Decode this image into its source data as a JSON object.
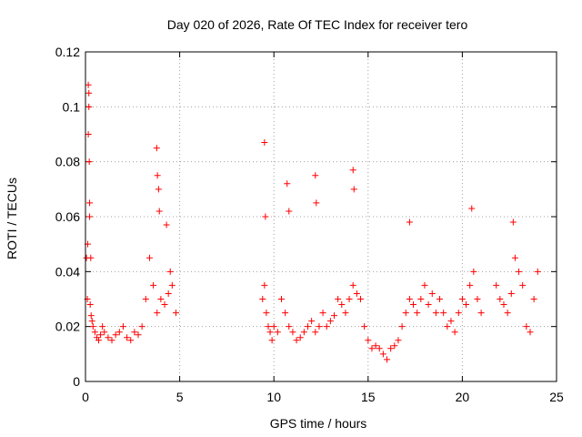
{
  "chart_data": {
    "type": "scatter",
    "title": "Day 020 of 2026, Rate Of TEC Index for receiver tero",
    "xlabel": "GPS time / hours",
    "ylabel": "ROTI / TECUs",
    "xlim": [
      0,
      25
    ],
    "ylim": [
      0,
      0.12
    ],
    "xticks": [
      "0",
      "5",
      "10",
      "15",
      "20",
      "25"
    ],
    "yticks": [
      "0",
      "0.02",
      "0.04",
      "0.06",
      "0.08",
      "0.1",
      "0.12"
    ],
    "grid": true,
    "marker": "+",
    "color": "#ff0000",
    "series": [
      {
        "x": [
          0.05,
          0.1,
          0.12,
          0.15,
          0.18,
          0.2,
          0.22,
          0.25,
          0.3,
          0.35,
          0.4,
          0.5,
          0.6,
          0.7,
          0.8,
          0.9,
          1.0,
          1.2,
          1.4,
          1.6,
          1.8,
          2.0,
          2.2,
          2.4,
          2.6,
          2.8,
          3.0,
          3.2,
          3.4,
          3.6,
          3.8,
          4.0,
          4.2,
          4.4,
          4.6,
          4.8,
          0.15,
          0.18,
          0.22,
          0.28,
          3.78,
          3.82,
          3.88,
          3.92,
          4.3,
          4.5,
          9.4,
          9.5,
          9.6,
          9.7,
          9.8,
          9.9,
          10.0,
          10.2,
          10.4,
          10.6,
          10.8,
          11.0,
          11.2,
          11.4,
          11.6,
          11.8,
          12.0,
          12.2,
          12.4,
          12.6,
          12.8,
          13.0,
          13.2,
          13.4,
          13.6,
          13.8,
          14.0,
          14.2,
          14.4,
          14.6,
          14.8,
          15.0,
          15.2,
          15.4,
          15.6,
          15.8,
          16.0,
          16.2,
          16.4,
          16.6,
          16.8,
          17.0,
          17.2,
          17.4,
          17.6,
          17.8,
          18.0,
          18.2,
          18.4,
          18.6,
          18.8,
          19.0,
          19.2,
          19.4,
          19.6,
          19.8,
          20.0,
          20.2,
          20.4,
          20.6,
          20.8,
          21.0,
          9.5,
          9.55,
          10.7,
          10.8,
          12.2,
          12.25,
          14.2,
          14.25,
          17.2,
          20.5,
          21.8,
          22.0,
          22.2,
          22.4,
          22.6,
          22.8,
          23.0,
          23.2,
          23.4,
          23.6,
          23.8,
          24.0,
          22.7
        ],
        "y": [
          0.045,
          0.03,
          0.05,
          0.09,
          0.105,
          0.08,
          0.06,
          0.028,
          0.024,
          0.022,
          0.02,
          0.018,
          0.016,
          0.015,
          0.017,
          0.02,
          0.018,
          0.016,
          0.015,
          0.017,
          0.018,
          0.02,
          0.016,
          0.015,
          0.018,
          0.017,
          0.02,
          0.03,
          0.045,
          0.035,
          0.025,
          0.03,
          0.028,
          0.032,
          0.035,
          0.025,
          0.108,
          0.1,
          0.065,
          0.045,
          0.085,
          0.075,
          0.07,
          0.062,
          0.057,
          0.04,
          0.03,
          0.035,
          0.025,
          0.02,
          0.018,
          0.015,
          0.02,
          0.018,
          0.03,
          0.025,
          0.02,
          0.018,
          0.015,
          0.016,
          0.018,
          0.02,
          0.022,
          0.018,
          0.02,
          0.025,
          0.02,
          0.022,
          0.024,
          0.03,
          0.028,
          0.025,
          0.03,
          0.035,
          0.032,
          0.03,
          0.02,
          0.015,
          0.012,
          0.013,
          0.012,
          0.01,
          0.008,
          0.012,
          0.013,
          0.015,
          0.02,
          0.025,
          0.03,
          0.028,
          0.025,
          0.03,
          0.035,
          0.028,
          0.032,
          0.025,
          0.03,
          0.025,
          0.02,
          0.022,
          0.018,
          0.025,
          0.03,
          0.028,
          0.035,
          0.04,
          0.03,
          0.025,
          0.087,
          0.06,
          0.072,
          0.062,
          0.075,
          0.065,
          0.077,
          0.07,
          0.058,
          0.063,
          0.035,
          0.03,
          0.028,
          0.025,
          0.032,
          0.045,
          0.04,
          0.035,
          0.02,
          0.018,
          0.03,
          0.04,
          0.058
        ]
      }
    ]
  }
}
